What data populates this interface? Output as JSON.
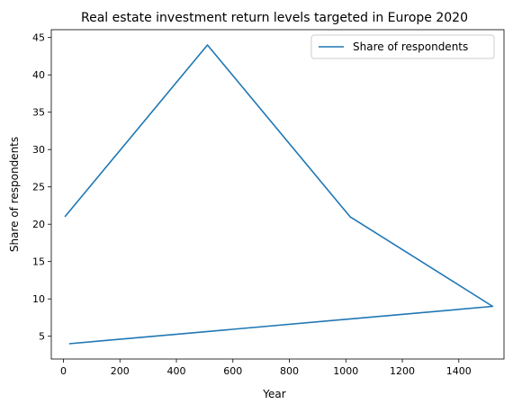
{
  "chart_data": {
    "type": "line",
    "title": "Real estate investment return levels targeted in Europe 2020",
    "xlabel": "Year",
    "ylabel": "Share of respondents",
    "xlim": [
      -43,
      1560
    ],
    "ylim": [
      1.95,
      46.05
    ],
    "xticks": [
      0,
      200,
      400,
      600,
      800,
      1000,
      1200,
      1400
    ],
    "yticks": [
      5,
      10,
      15,
      20,
      25,
      30,
      35,
      40,
      45
    ],
    "grid": false,
    "legend_position": "top-right",
    "series": [
      {
        "name": "Share of respondents",
        "color": "#1f77b4",
        "x": [
          5,
          510,
          1015,
          1520,
          20
        ],
        "y": [
          21,
          44,
          21,
          9,
          4
        ]
      }
    ]
  }
}
